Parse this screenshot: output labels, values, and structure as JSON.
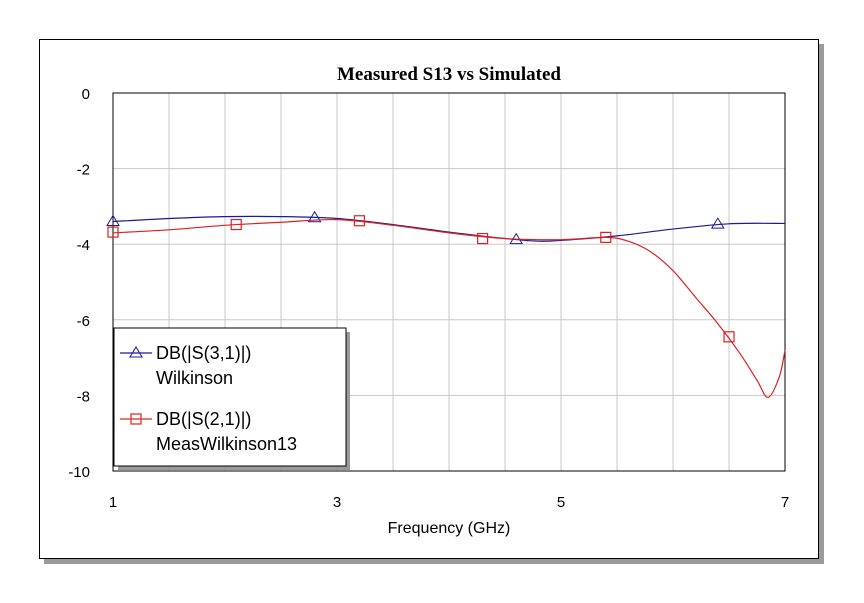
{
  "chart_data": {
    "type": "line",
    "title": "Measured S13 vs Simulated",
    "xlabel": "Frequency (GHz)",
    "ylabel": "",
    "xlim": [
      1,
      7
    ],
    "ylim": [
      -10,
      0
    ],
    "xticks": [
      1,
      3,
      5,
      7
    ],
    "yticks": [
      0,
      -2,
      -4,
      -6,
      -8,
      -10
    ],
    "grid": true,
    "legend_position": "bottom-left",
    "series": [
      {
        "name": "DB(|S(3,1)|)",
        "subtitle": "Wilkinson",
        "color": "#1a1a9a",
        "marker": "triangle",
        "x": [
          1.0,
          1.5,
          2.0,
          2.5,
          3.0,
          3.5,
          4.0,
          4.5,
          4.8,
          5.0,
          5.5,
          6.0,
          6.5,
          7.0
        ],
        "y": [
          -3.4,
          -3.32,
          -3.27,
          -3.27,
          -3.32,
          -3.48,
          -3.68,
          -3.85,
          -3.92,
          -3.9,
          -3.78,
          -3.6,
          -3.46,
          -3.45
        ],
        "markers_x": [
          1.0,
          2.8,
          4.6,
          6.4
        ],
        "markers_y": [
          -3.4,
          -3.3,
          -3.88,
          -3.47
        ]
      },
      {
        "name": "DB(|S(2,1)|)",
        "subtitle": "MeasWilkinson13",
        "color": "#e02020",
        "marker": "square",
        "x": [
          1.0,
          1.5,
          2.0,
          2.5,
          3.0,
          3.5,
          4.0,
          4.5,
          5.0,
          5.4,
          5.6,
          5.8,
          6.0,
          6.2,
          6.4,
          6.6,
          6.75,
          6.85,
          6.95,
          7.0
        ],
        "y": [
          -3.7,
          -3.62,
          -3.5,
          -3.42,
          -3.35,
          -3.5,
          -3.7,
          -3.85,
          -3.88,
          -3.82,
          -3.92,
          -4.2,
          -4.7,
          -5.4,
          -6.1,
          -6.9,
          -7.6,
          -8.05,
          -7.5,
          -6.8
        ],
        "markers_x": [
          1.0,
          2.1,
          3.2,
          4.3,
          5.4,
          6.5
        ],
        "markers_y": [
          -3.68,
          -3.48,
          -3.38,
          -3.85,
          -3.82,
          -6.45
        ]
      }
    ]
  }
}
